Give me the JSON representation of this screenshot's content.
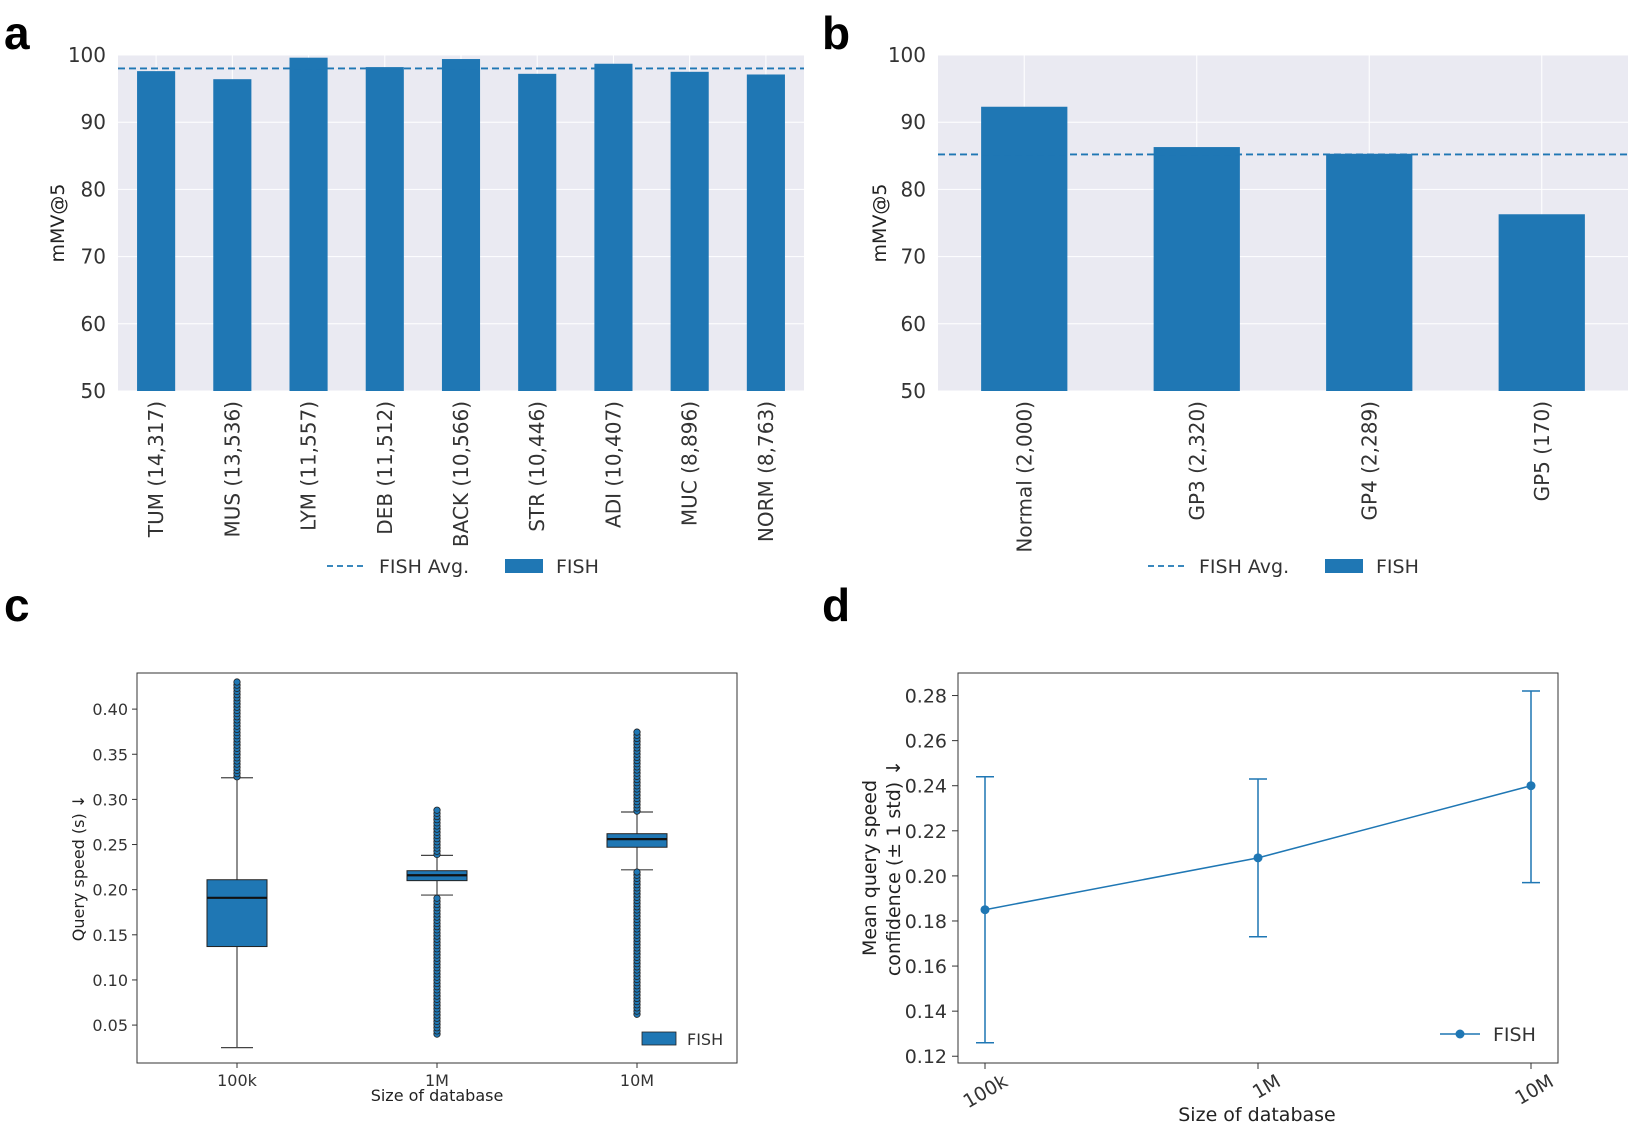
{
  "panels": {
    "a": "a",
    "b": "b",
    "c": "c",
    "d": "d"
  },
  "colors": {
    "bar": "#1f77b4",
    "grid_bg": "#eaeaf2",
    "grid_line": "#ffffff",
    "median": "#111111"
  },
  "chart_data": [
    {
      "panel": "a",
      "type": "bar",
      "title": "",
      "xlabel": "",
      "ylabel": "mMV@5",
      "ylim": [
        50,
        100
      ],
      "yticks": [
        50,
        60,
        70,
        80,
        90,
        100
      ],
      "categories": [
        "TUM (14,317)",
        "MUS (13,536)",
        "LYM (11,557)",
        "DEB (11,512)",
        "BACK (10,566)",
        "STR (10,446)",
        "ADI (10,407)",
        "MUC (8,896)",
        "NORM (8,763)"
      ],
      "values": [
        97.6,
        96.4,
        99.6,
        98.2,
        99.4,
        97.2,
        98.7,
        97.5,
        97.1
      ],
      "average": 98.0,
      "legend": {
        "avg_label": "FISH Avg.",
        "series_label": "FISH",
        "position": "bottom-center"
      }
    },
    {
      "panel": "b",
      "type": "bar",
      "title": "",
      "xlabel": "",
      "ylabel": "mMV@5",
      "ylim": [
        50,
        100
      ],
      "yticks": [
        50,
        60,
        70,
        80,
        90,
        100
      ],
      "categories": [
        "Normal (2,000)",
        "GP3 (2,320)",
        "GP4 (2,289)",
        "GP5 (170)"
      ],
      "values": [
        92.3,
        86.3,
        85.3,
        76.3
      ],
      "average": 85.2,
      "legend": {
        "avg_label": "FISH Avg.",
        "series_label": "FISH",
        "position": "bottom-center"
      }
    },
    {
      "panel": "c",
      "type": "box",
      "xlabel": "Size of database",
      "ylabel": "Query speed (s) ↓",
      "ylim": [
        0.008,
        0.44
      ],
      "yticks": [
        "0.05",
        "0.10",
        "0.15",
        "0.20",
        "0.25",
        "0.30",
        "0.35",
        "0.40"
      ],
      "categories": [
        "100k",
        "1M",
        "10M"
      ],
      "boxes": [
        {
          "whisker_low": 0.025,
          "q1": 0.137,
          "median": 0.191,
          "q3": 0.211,
          "whisker_high": 0.324,
          "outliers_low": [],
          "outliers_high_range": [
            0.325,
            0.43
          ]
        },
        {
          "whisker_low": 0.194,
          "q1": 0.21,
          "median": 0.216,
          "q3": 0.221,
          "whisker_high": 0.238,
          "outliers_low_range": [
            0.04,
            0.193
          ],
          "outliers_high_range": [
            0.239,
            0.288
          ]
        },
        {
          "whisker_low": 0.222,
          "q1": 0.247,
          "median": 0.256,
          "q3": 0.262,
          "whisker_high": 0.286,
          "outliers_low_range": [
            0.062,
            0.221
          ],
          "outliers_high_range": [
            0.287,
            0.376
          ]
        }
      ],
      "legend": {
        "series_label": "FISH",
        "position": "bottom-right"
      }
    },
    {
      "panel": "d",
      "type": "line",
      "xlabel": "Size of database",
      "ylabel": "Mean query speed confidence (± 1 std) ↓",
      "ylabel_lines": [
        "Mean query speed",
        "confidence (± 1 std) ↓"
      ],
      "ylim": [
        0.117,
        0.29
      ],
      "yticks": [
        "0.12",
        "0.14",
        "0.16",
        "0.18",
        "0.20",
        "0.22",
        "0.24",
        "0.26",
        "0.28"
      ],
      "categories": [
        "100k",
        "1M",
        "10M"
      ],
      "means": [
        0.185,
        0.208,
        0.24
      ],
      "err_low": [
        0.126,
        0.173,
        0.197
      ],
      "err_high": [
        0.244,
        0.243,
        0.282
      ],
      "legend": {
        "series_label": "FISH",
        "position": "bottom-right"
      }
    }
  ]
}
